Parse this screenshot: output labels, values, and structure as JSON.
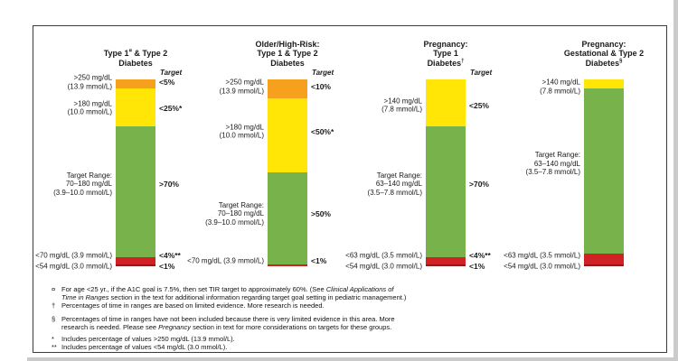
{
  "page": {
    "background": "#ffffff",
    "border_color": "#3c3c3c"
  },
  "chart_data": {
    "type": "bar",
    "subtype": "stacked-vertical-100pct",
    "unit": "% of time in glucose range",
    "target_header": "Target",
    "legend_position": "none",
    "colors": {
      "orange": "#F6A01E",
      "yellow": "#FFE606",
      "green": "#77B24A",
      "red": "#D02127",
      "darkred": "#8F1A1C"
    },
    "charts": [
      {
        "title": "Type 1 & Type 2 Diabetes",
        "title_lines": [
          [
            {
              "t": "Type 1"
            },
            {
              "t": "¤",
              "sup": true
            },
            {
              "t": " & Type 2"
            }
          ],
          [
            {
              "t": "Diabetes"
            }
          ]
        ],
        "show_target_header": true,
        "segments": [
          {
            "color": "orange",
            "pct": 5,
            "label_anchor_pct": 1.5,
            "left_label_lines": [
              ">250 mg/dL",
              "(13.9 mmol/L)"
            ],
            "right_label": "<5%"
          },
          {
            "color": "yellow",
            "pct": 20,
            "label_anchor_pct": 15.5,
            "left_label_lines": [
              ">180 mg/dL",
              "(10.0 mmol/L)"
            ],
            "right_label": "<25%*"
          },
          {
            "color": "green",
            "pct": 70,
            "label_anchor_pct": 56,
            "left_label_lines": [
              "Target Range:",
              "70–180 mg/dL",
              "(3.9–10.0 mmol/L)"
            ],
            "right_label": ">70%"
          },
          {
            "color": "red",
            "pct": 4,
            "label_anchor_pct": 94,
            "left_label_lines": [
              "<70 mg/dL (3.9 mmol/L)"
            ],
            "right_label": "<4%**"
          },
          {
            "color": "darkred",
            "pct": 1,
            "label_anchor_pct": 100,
            "left_label_lines": [
              "<54 mg/dL (3.0 mmol/L)"
            ],
            "right_label": "<1%"
          }
        ]
      },
      {
        "title": "Older/High-Risk: Type 1 & Type 2 Diabetes",
        "title_lines": [
          [
            {
              "t": "Older/High-Risk:"
            }
          ],
          [
            {
              "t": "Type 1 & Type 2"
            }
          ],
          [
            {
              "t": "Diabetes"
            }
          ]
        ],
        "show_target_header": true,
        "segments": [
          {
            "color": "orange",
            "pct": 10,
            "label_anchor_pct": 4,
            "left_label_lines": [
              ">250 mg/dL",
              "(13.9 mmol/L)"
            ],
            "right_label": "<10%"
          },
          {
            "color": "yellow",
            "pct": 40,
            "label_anchor_pct": 28,
            "left_label_lines": [
              ">180 mg/dL",
              "(10.0 mmol/L)"
            ],
            "right_label": "<50%*"
          },
          {
            "color": "green",
            "pct": 49,
            "label_anchor_pct": 72,
            "left_label_lines": [
              "Target Range:",
              "70–180 mg/dL",
              "(3.9–10.0 mmol/L)"
            ],
            "right_label": ">50%"
          },
          {
            "color": "red",
            "pct": 1,
            "label_anchor_pct": 97,
            "left_label_lines": [
              "<70 mg/dL (3.9 mmol/L)"
            ],
            "right_label": "<1%"
          }
        ]
      },
      {
        "title": "Pregnancy: Type 1 Diabetes",
        "title_lines": [
          [
            {
              "t": "Pregnancy:"
            }
          ],
          [
            {
              "t": "Type 1"
            }
          ],
          [
            {
              "t": "Diabetes"
            },
            {
              "t": "†",
              "sup": true
            }
          ]
        ],
        "show_target_header": true,
        "segments": [
          {
            "color": "yellow",
            "pct": 25,
            "label_anchor_pct": 14,
            "left_label_lines": [
              ">140 mg/dL",
              "(7.8 mmol/L)"
            ],
            "right_label": "<25%"
          },
          {
            "color": "green",
            "pct": 70,
            "label_anchor_pct": 56,
            "left_label_lines": [
              "Target Range:",
              "63–140 mg/dL",
              "(3.5–7.8 mmol/L)"
            ],
            "right_label": ">70%"
          },
          {
            "color": "red",
            "pct": 4,
            "label_anchor_pct": 94,
            "left_label_lines": [
              "<63 mg/dL (3.5 mmol/L)"
            ],
            "right_label": "<4%**"
          },
          {
            "color": "darkred",
            "pct": 1,
            "label_anchor_pct": 100,
            "left_label_lines": [
              "<54 mg/dL (3.0 mmol/L)"
            ],
            "right_label": "<1%"
          }
        ]
      },
      {
        "title": "Pregnancy: Gestational & Type 2 Diabetes",
        "title_lines": [
          [
            {
              "t": "Pregnancy:"
            }
          ],
          [
            {
              "t": "Gestational & Type 2"
            }
          ],
          [
            {
              "t": "Diabetes"
            },
            {
              "t": "§",
              "sup": true
            }
          ]
        ],
        "show_target_header": false,
        "segments": [
          {
            "color": "yellow",
            "pct": 5,
            "label_anchor_pct": 4,
            "left_label_lines": [
              ">140 mg/dL",
              "(7.8 mmol/L)"
            ]
          },
          {
            "color": "green",
            "pct": 88,
            "label_anchor_pct": 45,
            "left_label_lines": [
              "Target Range:",
              "63–140 mg/dL",
              "(3.5–7.8 mmol/L)"
            ]
          },
          {
            "color": "red",
            "pct": 6,
            "label_anchor_pct": 94,
            "left_label_lines": [
              "<63 mg/dL (3.5 mmol/L)"
            ]
          },
          {
            "color": "darkred",
            "pct": 1,
            "label_anchor_pct": 100,
            "left_label_lines": [
              "<54 mg/dL (3.0 mmol/L)"
            ]
          }
        ]
      }
    ]
  },
  "footnotes": [
    {
      "marker": "¤",
      "lines": [
        [
          {
            "t": "For age <25 yr., if the A1C goal is 7.5%, then set TIR target to approximately 60%.  (See "
          },
          {
            "t": "Clinical Applications of",
            "i": true
          }
        ],
        [
          {
            "t": "Time in Ranges",
            "i": true
          },
          {
            "t": " section in the text for additional information regarding target goal setting in pediatric management.)"
          }
        ]
      ]
    },
    {
      "marker": "†",
      "lines": [
        [
          {
            "t": "Percentages of time in ranges are based on limited evidence. More research is needed."
          }
        ]
      ]
    },
    {
      "marker": "§",
      "lines": [
        [
          {
            "t": "Percentages of time in ranges have not been included because there is very limited evidence in this area.  More"
          }
        ],
        [
          {
            "t": "research is needed. Please see "
          },
          {
            "t": "Pregnancy",
            "i": true
          },
          {
            "t": " section in text for more considerations on targets for these groups."
          }
        ]
      ]
    },
    {
      "marker": "*",
      "lines": [
        [
          {
            "t": "Includes percentage of values >250 mg/dL (13.9 mmol/L)."
          }
        ]
      ]
    },
    {
      "marker": "**",
      "lines": [
        [
          {
            "t": "Includes percentage of values <54 mg/dL (3.0 mmol/L)."
          }
        ]
      ]
    }
  ]
}
